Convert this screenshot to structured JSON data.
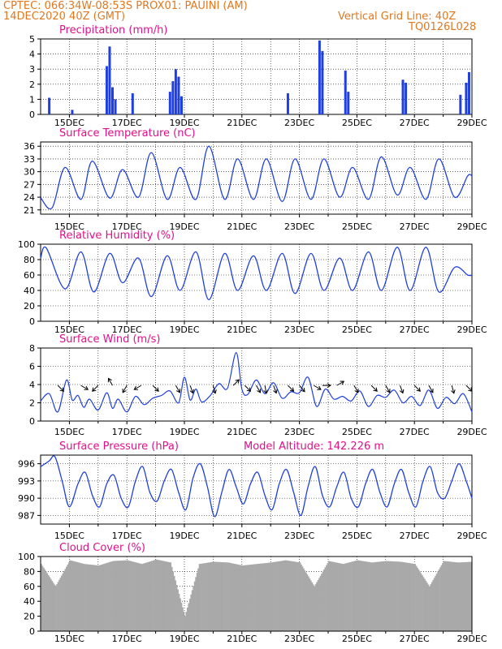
{
  "header": {
    "line1_left": "CPTEC:   066:34W-08:53S   PROX01: PAUINI (AM)",
    "line2_left": "14DEC2020 40Z (GMT)",
    "line2_right": "Vertical Grid Line: 40Z",
    "line3_right": "TQ0126L028",
    "model_altitude": "Model Altitude: 142.226 m"
  },
  "colors": {
    "header": "#e07820",
    "title": "#e0108a",
    "line": "#1f3fe0",
    "bar": "#1f3fe0",
    "cloud": "#a9a9a9",
    "arrow": "#000000"
  },
  "chart_data": [
    {
      "type": "bar",
      "title": "Precipitation (mm/h)",
      "x_tick_labels": [
        "15DEC",
        "17DEC",
        "19DEC",
        "21DEC",
        "23DEC",
        "25DEC",
        "27DEC",
        "29DEC"
      ],
      "ylim": [
        0,
        5
      ],
      "y_ticks": [
        0,
        1,
        2,
        3,
        4,
        5
      ],
      "grid": true,
      "x_days": [
        14.3,
        15.1,
        16.3,
        16.4,
        16.5,
        16.6,
        17.2,
        18.5,
        18.6,
        18.7,
        18.8,
        18.9,
        22.6,
        23.7,
        23.8,
        24.6,
        24.7,
        26.6,
        26.7,
        28.6,
        28.8,
        28.9
      ],
      "values": [
        1.1,
        0.3,
        3.2,
        4.5,
        1.8,
        1.0,
        1.4,
        1.5,
        2.2,
        3.0,
        2.5,
        1.2,
        1.4,
        4.9,
        4.2,
        2.9,
        1.5,
        2.3,
        2.1,
        1.3,
        2.1,
        2.8
      ]
    },
    {
      "type": "line",
      "title": "Surface Temperature (nC)",
      "x_tick_labels": [
        "15DEC",
        "17DEC",
        "19DEC",
        "21DEC",
        "23DEC",
        "25DEC",
        "27DEC",
        "29DEC"
      ],
      "ylim": [
        20,
        37
      ],
      "y_ticks": [
        21,
        24,
        27,
        30,
        33,
        36
      ],
      "grid": true,
      "max_days": [
        14.85,
        15.8,
        16.85,
        17.85,
        18.85,
        19.85,
        20.85,
        21.85,
        22.85,
        23.85,
        24.85,
        25.85,
        26.85,
        27.85,
        28.85
      ],
      "max_values": [
        31,
        32.5,
        30.5,
        34.5,
        31,
        36,
        33,
        33,
        33,
        33,
        31,
        33.5,
        31,
        33,
        29
      ],
      "min_days": [
        14.4,
        15.4,
        16.4,
        17.4,
        18.4,
        19.4,
        20.4,
        21.4,
        22.4,
        23.4,
        24.4,
        25.4,
        26.4,
        27.4,
        28.4
      ],
      "min_values": [
        21.5,
        23.5,
        23.8,
        24,
        23.5,
        23.5,
        23.5,
        23.5,
        23,
        23.5,
        24,
        23.5,
        24.5,
        23.5,
        24
      ]
    },
    {
      "type": "line",
      "title": "Relative Humidity (%)",
      "x_tick_labels": [
        "15DEC",
        "17DEC",
        "19DEC",
        "21DEC",
        "23DEC",
        "25DEC",
        "27DEC",
        "29DEC"
      ],
      "ylim": [
        0,
        100
      ],
      "y_ticks": [
        0,
        20,
        40,
        60,
        80,
        100
      ],
      "grid": true,
      "max_days": [
        14.2,
        15.4,
        16.4,
        17.4,
        18.4,
        19.4,
        20.4,
        21.4,
        22.4,
        23.4,
        24.4,
        25.4,
        26.4,
        27.4,
        28.4
      ],
      "max_values": [
        95,
        90,
        88,
        82,
        85,
        90,
        88,
        85,
        88,
        88,
        82,
        90,
        96,
        96,
        70
      ],
      "min_days": [
        14.85,
        15.85,
        16.85,
        17.85,
        18.85,
        19.85,
        20.85,
        21.85,
        22.85,
        23.85,
        24.85,
        25.85,
        26.85,
        27.85,
        28.85
      ],
      "min_values": [
        42,
        38,
        50,
        32,
        40,
        28,
        40,
        40,
        36,
        40,
        40,
        40,
        40,
        38,
        60
      ]
    },
    {
      "type": "line",
      "title": "Surface Wind (m/s)",
      "x_tick_labels": [
        "15DEC",
        "17DEC",
        "19DEC",
        "21DEC",
        "23DEC",
        "25DEC",
        "27DEC",
        "29DEC"
      ],
      "ylim": [
        0,
        8
      ],
      "y_ticks": [
        0,
        2,
        4,
        6,
        8
      ],
      "grid": true,
      "x_days": [
        14.0,
        14.3,
        14.6,
        14.9,
        15.1,
        15.3,
        15.5,
        15.7,
        16.0,
        16.3,
        16.5,
        16.7,
        17.0,
        17.3,
        17.6,
        17.9,
        18.2,
        18.5,
        18.8,
        19.0,
        19.2,
        19.4,
        19.6,
        19.9,
        20.2,
        20.5,
        20.8,
        21.0,
        21.2,
        21.5,
        21.8,
        22.1,
        22.4,
        22.7,
        23.0,
        23.3,
        23.6,
        23.9,
        24.2,
        24.5,
        24.8,
        25.1,
        25.4,
        25.7,
        26.0,
        26.3,
        26.6,
        26.9,
        27.2,
        27.5,
        27.8,
        28.1,
        28.4,
        28.7,
        29.0
      ],
      "values": [
        2.2,
        3.0,
        1.0,
        4.5,
        2.3,
        2.8,
        1.5,
        2.4,
        1.2,
        3.1,
        1.4,
        2.4,
        1.0,
        2.7,
        1.8,
        2.5,
        2.8,
        3.3,
        2.0,
        4.8,
        2.3,
        3.5,
        2.1,
        2.8,
        4.1,
        3.6,
        7.5,
        3.5,
        2.9,
        4.5,
        3.0,
        4.2,
        2.5,
        3.2,
        3.1,
        4.8,
        1.6,
        3.5,
        2.4,
        2.7,
        2.2,
        3.3,
        1.6,
        2.8,
        2.6,
        3.4,
        2.0,
        2.7,
        1.7,
        3.4,
        1.4,
        2.6,
        1.9,
        3.0,
        1.0
      ],
      "arrow_days": [
        14.6,
        15.4,
        16.0,
        16.5,
        17.0,
        17.5,
        17.9,
        18.7,
        19.2,
        20.0,
        20.7,
        21.1,
        21.5,
        21.8,
        22.1,
        22.6,
        23.0,
        23.5,
        23.8,
        24.3,
        24.9,
        25.5,
        26.0,
        26.5,
        27.0,
        27.5,
        28.3,
        28.8
      ],
      "arrow_dirs_deg": [
        45,
        60,
        315,
        210,
        330,
        300,
        45,
        30,
        20,
        15,
        135,
        45,
        30,
        10,
        20,
        45,
        40,
        60,
        90,
        120,
        30,
        45,
        30,
        20,
        45,
        30,
        15,
        45
      ]
    },
    {
      "type": "line",
      "title": "Surface Pressure (hPa)",
      "x_tick_labels": [
        "15DEC",
        "17DEC",
        "19DEC",
        "21DEC",
        "23DEC",
        "25DEC",
        "27DEC",
        "29DEC"
      ],
      "ylim": [
        985.5,
        997.5
      ],
      "y_ticks": [
        987,
        990,
        993,
        996
      ],
      "grid": true,
      "x_days": [
        14.0,
        14.3,
        14.5,
        14.75,
        15.0,
        15.3,
        15.55,
        15.8,
        16.05,
        16.3,
        16.55,
        16.8,
        17.05,
        17.3,
        17.55,
        17.8,
        18.05,
        18.3,
        18.55,
        18.8,
        19.05,
        19.3,
        19.55,
        19.8,
        20.05,
        20.3,
        20.55,
        20.8,
        21.05,
        21.3,
        21.55,
        21.8,
        22.05,
        22.3,
        22.55,
        22.8,
        23.05,
        23.3,
        23.55,
        23.8,
        24.05,
        24.3,
        24.55,
        24.8,
        25.05,
        25.3,
        25.55,
        25.8,
        26.05,
        26.3,
        26.55,
        26.8,
        27.05,
        27.3,
        27.55,
        27.8,
        28.05,
        28.3,
        28.55,
        28.8,
        29.0
      ],
      "values": [
        995.5,
        996.5,
        997.2,
        993,
        988.5,
        992.5,
        994.5,
        990.5,
        988.5,
        992.5,
        994,
        990,
        988.5,
        993,
        995.5,
        991,
        989.5,
        993,
        995,
        991,
        988,
        993.5,
        996,
        992,
        986.8,
        991,
        995,
        992,
        989,
        992.5,
        994.5,
        990.5,
        988,
        992.5,
        995,
        991,
        987,
        992,
        995.5,
        990.5,
        988.5,
        992,
        994.5,
        990,
        988.5,
        992.5,
        995,
        991,
        988.5,
        992.5,
        995,
        991,
        988.5,
        993,
        995.5,
        991,
        990,
        993,
        996,
        993,
        990
      ]
    },
    {
      "type": "bar",
      "title": "Cloud Cover (%)",
      "x_tick_labels": [
        "15DEC",
        "17DEC",
        "19DEC",
        "21DEC",
        "23DEC",
        "25DEC",
        "27DEC",
        "29DEC"
      ],
      "ylim": [
        0,
        100
      ],
      "y_ticks": [
        0,
        20,
        40,
        60,
        80,
        100
      ],
      "grid": true,
      "x_days": [
        14.0,
        14.5,
        15.0,
        15.5,
        16.0,
        16.5,
        17.0,
        17.5,
        18.0,
        18.5,
        19.0,
        19.5,
        20.0,
        20.5,
        21.0,
        21.5,
        22.0,
        22.5,
        23.0,
        23.5,
        24.0,
        24.5,
        25.0,
        25.5,
        26.0,
        26.5,
        27.0,
        27.5,
        28.0,
        28.5,
        29.0
      ],
      "values": [
        90,
        60,
        95,
        90,
        88,
        94,
        95,
        90,
        96,
        92,
        20,
        90,
        93,
        92,
        88,
        90,
        92,
        95,
        92,
        60,
        94,
        90,
        95,
        92,
        94,
        93,
        90,
        60,
        94,
        92,
        93
      ]
    }
  ]
}
